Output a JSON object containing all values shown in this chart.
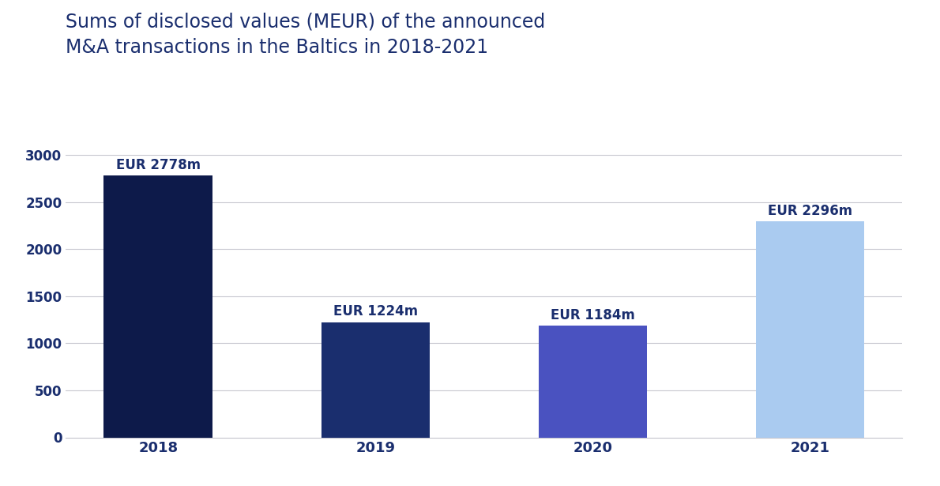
{
  "categories": [
    "2018",
    "2019",
    "2020",
    "2021"
  ],
  "values": [
    2778,
    1224,
    1184,
    2296
  ],
  "bar_colors": [
    "#0d1a4a",
    "#1a2e6e",
    "#4a52c0",
    "#aacbf0"
  ],
  "labels": [
    "EUR 2778m",
    "EUR 1224m",
    "EUR 1184m",
    "EUR 2296m"
  ],
  "title_line1": "Sums of disclosed values (MEUR) of the announced",
  "title_line2": "M&A transactions in the Baltics in 2018-2021",
  "ylim": [
    0,
    3200
  ],
  "yticks": [
    0,
    500,
    1000,
    1500,
    2000,
    2500,
    3000
  ],
  "title_color": "#1a2e6e",
  "label_color": "#1a2e6e",
  "tick_color": "#1a2e6e",
  "grid_color": "#c8c8d0",
  "background_color": "#ffffff",
  "title_fontsize": 17,
  "label_fontsize": 12,
  "tick_fontsize": 12,
  "xtick_fontsize": 13,
  "bar_width": 0.5
}
